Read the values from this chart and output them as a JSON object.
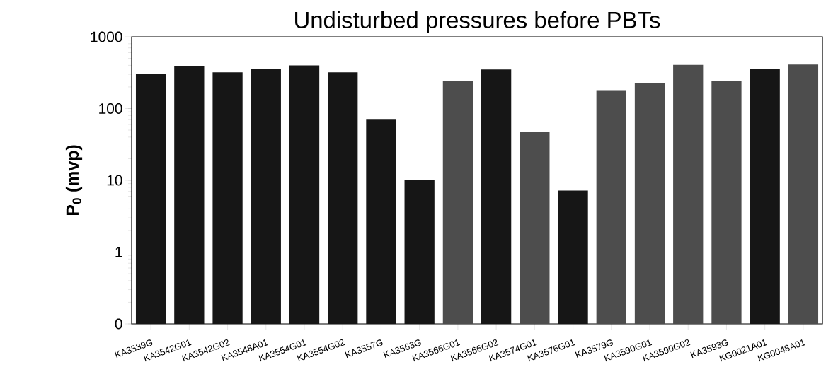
{
  "chart_data": {
    "type": "bar",
    "title": "Undisturbed pressures before PBTs",
    "ylabel": "P$_{0}$ (mvp)",
    "log": "y",
    "categories": [
      "KA3539G",
      "KA3542G01",
      "KA3542G02",
      "KA3548A01",
      "KA3554G01",
      "KA3554G02",
      "KA3557G",
      "KA3563G",
      "KA3566G01",
      "KA3566G02",
      "KA3574G01",
      "KA3576G01",
      "KA3579G",
      "KA3590G01",
      "KA3590G02",
      "KA3593G",
      "KG0021A01",
      "KG0048A01"
    ],
    "values": [
      300,
      390,
      320,
      360,
      400,
      320,
      70,
      10,
      245,
      350,
      47,
      7.2,
      180,
      225,
      405,
      245,
      355,
      410
    ],
    "colors": [
      "#161616",
      "#161616",
      "#161616",
      "#161616",
      "#161616",
      "#161616",
      "#161616",
      "#161616",
      "#4d4d4d",
      "#161616",
      "#4d4d4d",
      "#161616",
      "#4d4d4d",
      "#4d4d4d",
      "#4d4d4d",
      "#4d4d4d",
      "#161616",
      "#4d4d4d"
    ],
    "ylim": [
      0.1,
      1000
    ],
    "yticks": [
      {
        "value": 0.1,
        "label": "0"
      },
      1,
      10,
      100,
      1000
    ]
  }
}
